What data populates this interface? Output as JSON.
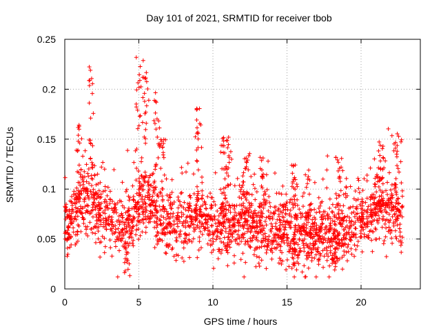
{
  "chart_data": {
    "type": "scatter",
    "title": "Day 101 of 2021, SRMTID for receiver tbob",
    "xlabel": "GPS time / hours",
    "ylabel": "SRMTID / TECUs",
    "xlim": [
      0,
      24
    ],
    "ylim": [
      0,
      0.25
    ],
    "xticks": [
      "0",
      "5",
      "10",
      "15",
      "20"
    ],
    "yticks": [
      "0",
      "0.05",
      "0.1",
      "0.15",
      "0.2",
      "0.25"
    ],
    "grid": true,
    "marker": "+",
    "color": "#ff0000",
    "series": [
      {
        "name": "SRMTID",
        "trend": [
          [
            0.0,
            0.06
          ],
          [
            0.5,
            0.07
          ],
          [
            1.0,
            0.085
          ],
          [
            1.5,
            0.09
          ],
          [
            2.0,
            0.085
          ],
          [
            2.5,
            0.075
          ],
          [
            3.0,
            0.068
          ],
          [
            3.5,
            0.065
          ],
          [
            4.0,
            0.06
          ],
          [
            4.5,
            0.07
          ],
          [
            5.0,
            0.085
          ],
          [
            5.5,
            0.085
          ],
          [
            6.0,
            0.08
          ],
          [
            6.5,
            0.07
          ],
          [
            7.0,
            0.065
          ],
          [
            7.5,
            0.062
          ],
          [
            8.0,
            0.062
          ],
          [
            8.5,
            0.068
          ],
          [
            9.0,
            0.075
          ],
          [
            9.5,
            0.07
          ],
          [
            10.0,
            0.062
          ],
          [
            10.5,
            0.06
          ],
          [
            11.0,
            0.062
          ],
          [
            11.5,
            0.068
          ],
          [
            12.0,
            0.07
          ],
          [
            12.5,
            0.068
          ],
          [
            13.0,
            0.065
          ],
          [
            13.5,
            0.06
          ],
          [
            14.0,
            0.058
          ],
          [
            14.5,
            0.058
          ],
          [
            15.0,
            0.06
          ],
          [
            15.5,
            0.06
          ],
          [
            16.0,
            0.052
          ],
          [
            16.5,
            0.05
          ],
          [
            17.0,
            0.055
          ],
          [
            17.5,
            0.058
          ],
          [
            18.0,
            0.055
          ],
          [
            18.5,
            0.055
          ],
          [
            19.0,
            0.058
          ],
          [
            19.5,
            0.06
          ],
          [
            20.0,
            0.065
          ],
          [
            20.5,
            0.07
          ],
          [
            21.0,
            0.075
          ],
          [
            21.5,
            0.085
          ],
          [
            22.0,
            0.082
          ],
          [
            22.5,
            0.075
          ],
          [
            22.8,
            0.07
          ]
        ],
        "peaks": [
          [
            1.8,
            0.225
          ],
          [
            1.0,
            0.17
          ],
          [
            5.0,
            0.235
          ],
          [
            5.4,
            0.23
          ],
          [
            6.2,
            0.205
          ],
          [
            6.6,
            0.15
          ],
          [
            9.0,
            0.185
          ],
          [
            10.7,
            0.155
          ],
          [
            11.0,
            0.152
          ],
          [
            12.2,
            0.14
          ],
          [
            13.3,
            0.132
          ],
          [
            15.5,
            0.125
          ],
          [
            16.3,
            0.12
          ],
          [
            18.5,
            0.132
          ],
          [
            21.3,
            0.156
          ],
          [
            22.4,
            0.157
          ],
          [
            4.2,
            0.013
          ],
          [
            15.5,
            0.02
          ],
          [
            18.2,
            0.02
          ]
        ]
      }
    ]
  }
}
